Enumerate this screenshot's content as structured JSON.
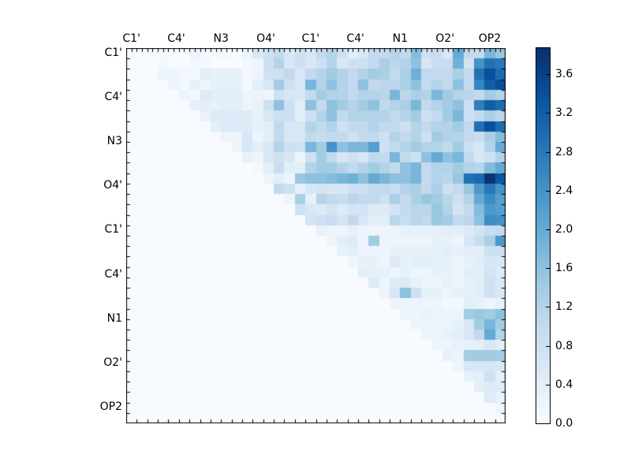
{
  "chart_data": {
    "type": "heatmap",
    "title": "",
    "x_labels": [
      "C1'",
      "C4'",
      "N3",
      "O4'",
      "C1'",
      "C4'",
      "N1",
      "O2'",
      "OP2"
    ],
    "y_labels": [
      "C1'",
      "C4'",
      "N3",
      "O4'",
      "C1'",
      "C4'",
      "N1",
      "O2'",
      "OP2"
    ],
    "n_cells": 36,
    "label_positions_cells": [
      0.5,
      4.75,
      9.0,
      13.25,
      17.5,
      21.75,
      26.0,
      30.25,
      34.5
    ],
    "layout": "upper-triangular matrix, diagonal and lower triangle at zero",
    "colormap": "Blues",
    "colormap_stops": [
      "#f7fbff",
      "#deebf7",
      "#c6dbef",
      "#9ecae1",
      "#6baed6",
      "#4292c6",
      "#2171b5",
      "#08519c",
      "#08306b"
    ],
    "vmin": 0.0,
    "vmax": 3.87,
    "colorbar_ticks": [
      "0.0",
      "0.4",
      "0.8",
      "1.2",
      "1.6",
      "2.0",
      "2.4",
      "2.8",
      "3.2",
      "3.6"
    ],
    "colorbar_tick_values": [
      0.0,
      0.4,
      0.8,
      1.2,
      1.6,
      2.0,
      2.4,
      2.8,
      3.2,
      3.6
    ],
    "colorbar_position": "right",
    "matrix": [
      [
        0,
        0,
        0.1,
        0.1,
        0,
        0,
        0.2,
        0.1,
        0.1,
        0.1,
        0,
        0.2,
        0.6,
        0.8,
        1.0,
        0.6,
        0.8,
        0.6,
        1.0,
        1.2,
        0.8,
        0.4,
        0.6,
        1.0,
        1.0,
        1.2,
        1.0,
        1.7,
        0.8,
        0.9,
        0.6,
        2.0,
        1.0,
        1.0,
        1.8,
        1.5
      ],
      [
        0,
        0,
        0,
        0.1,
        0,
        0,
        0.1,
        0.1,
        0,
        0,
        0,
        0.1,
        0.2,
        0.8,
        1.2,
        0.6,
        0.8,
        0.6,
        0.8,
        1.2,
        0.6,
        0.8,
        0.8,
        1.0,
        1.3,
        1.1,
        1.2,
        1.6,
        0.6,
        0.9,
        0.9,
        1.9,
        0.7,
        2.4,
        2.9,
        2.8
      ],
      [
        0,
        0,
        0,
        0.2,
        0.2,
        0.1,
        0.1,
        0.4,
        0.3,
        0.3,
        0.3,
        0.1,
        0.2,
        0.8,
        0.8,
        1.0,
        0.6,
        1.0,
        1.2,
        1.4,
        1.2,
        1.0,
        1.2,
        1.4,
        1.3,
        1.0,
        1.3,
        1.9,
        1.0,
        1.0,
        1.0,
        1.3,
        1.0,
        2.9,
        3.4,
        3.0
      ],
      [
        0,
        0,
        0,
        0,
        0.2,
        0.1,
        0.3,
        0.2,
        0.3,
        0.3,
        0.3,
        0.1,
        0.4,
        0.6,
        1.4,
        0.8,
        0.6,
        1.8,
        1.2,
        1.6,
        1.2,
        1.0,
        1.6,
        1.0,
        1.1,
        1.1,
        1.3,
        1.6,
        1.0,
        1.2,
        1.0,
        1.6,
        1.0,
        2.6,
        3.2,
        3.4
      ],
      [
        0,
        0,
        0,
        0,
        0,
        0.2,
        0.1,
        0.5,
        0.4,
        0.4,
        0.4,
        0.2,
        0.2,
        0.2,
        0.8,
        0.6,
        0.6,
        1.0,
        1.4,
        1.2,
        1.2,
        1.0,
        1.2,
        1.2,
        1.1,
        1.8,
        1.1,
        1.3,
        1.2,
        1.8,
        1.4,
        1.2,
        1.1,
        1.0,
        1.4,
        1.2
      ],
      [
        0,
        0,
        0,
        0,
        0,
        0,
        0.3,
        0.4,
        0.3,
        0.4,
        0.4,
        0.2,
        0.3,
        0.8,
        1.6,
        0.8,
        0.4,
        1.6,
        1.0,
        1.6,
        1.4,
        1.2,
        1.4,
        1.6,
        1.0,
        1.2,
        1.3,
        1.8,
        1.0,
        1.2,
        1.4,
        1.6,
        0.8,
        2.7,
        3.2,
        3.0
      ],
      [
        0,
        0,
        0,
        0,
        0,
        0,
        0,
        0.3,
        0.5,
        0.5,
        0.5,
        0.5,
        0.3,
        0.6,
        0.8,
        0.8,
        0.4,
        0.8,
        1.2,
        1.6,
        1.0,
        1.2,
        1.2,
        1.2,
        1.2,
        1.0,
        1.2,
        1.4,
        0.8,
        1.0,
        1.4,
        1.8,
        0.8,
        1.0,
        1.3,
        1.1
      ],
      [
        0,
        0,
        0,
        0,
        0,
        0,
        0,
        0,
        0.4,
        0.5,
        0.5,
        0.5,
        0.3,
        0.4,
        1.0,
        0.6,
        0.6,
        1.2,
        1.0,
        1.2,
        0.8,
        1.0,
        1.0,
        1.2,
        1.0,
        1.0,
        0.8,
        1.2,
        1.0,
        1.2,
        1.2,
        1.4,
        1.0,
        2.9,
        3.4,
        3.0
      ],
      [
        0,
        0,
        0,
        0,
        0,
        0,
        0,
        0,
        0,
        0.2,
        0.2,
        0.6,
        0.2,
        0.4,
        1.0,
        0.6,
        0.6,
        1.0,
        0.9,
        1.0,
        1.0,
        0.8,
        1.0,
        1.0,
        0.8,
        1.2,
        1.0,
        1.2,
        0.8,
        1.4,
        1.2,
        1.2,
        1.0,
        0.9,
        1.3,
        1.7
      ],
      [
        0,
        0,
        0,
        0,
        0,
        0,
        0,
        0,
        0,
        0,
        0.2,
        0.6,
        0.4,
        0.6,
        1.2,
        0.8,
        0.8,
        1.8,
        1.4,
        2.4,
        1.6,
        1.8,
        1.8,
        2.2,
        0.8,
        1.0,
        1.2,
        1.4,
        1.2,
        1.2,
        1.0,
        1.4,
        0.8,
        0.6,
        1.2,
        2.0
      ],
      [
        0,
        0,
        0,
        0,
        0,
        0,
        0,
        0,
        0,
        0,
        0,
        0.3,
        0.2,
        0.6,
        0.8,
        0.6,
        0.2,
        0.8,
        1.4,
        1.0,
        0.6,
        0.8,
        0.6,
        1.0,
        1.0,
        1.8,
        1.0,
        0.8,
        1.6,
        2.0,
        1.6,
        1.8,
        1.0,
        0.6,
        0.8,
        1.2
      ],
      [
        0,
        0,
        0,
        0,
        0,
        0,
        0,
        0,
        0,
        0,
        0,
        0,
        0.1,
        0.4,
        0.9,
        0.4,
        0.4,
        1.2,
        1.4,
        1.4,
        1.2,
        1.0,
        1.2,
        1.4,
        1.2,
        1.0,
        1.6,
        1.8,
        1.0,
        1.2,
        1.2,
        1.4,
        1.2,
        1.1,
        1.7,
        2.0
      ],
      [
        0,
        0,
        0,
        0,
        0,
        0,
        0,
        0,
        0,
        0,
        0,
        0,
        0,
        0.2,
        0.4,
        0.2,
        1.5,
        1.6,
        1.6,
        1.7,
        1.8,
        1.9,
        1.6,
        2.0,
        1.8,
        1.6,
        1.6,
        1.8,
        1.0,
        1.2,
        1.1,
        1.5,
        2.9,
        3.0,
        3.8,
        3.3
      ],
      [
        0,
        0,
        0,
        0,
        0,
        0,
        0,
        0,
        0,
        0,
        0,
        0,
        0,
        0,
        1.0,
        0.8,
        0.3,
        0.6,
        0.7,
        0.6,
        0.6,
        0.8,
        0.8,
        1.0,
        1.0,
        0.9,
        1.2,
        1.3,
        1.0,
        1.3,
        0.8,
        1.0,
        1.5,
        2.3,
        2.8,
        2.4
      ],
      [
        0,
        0,
        0,
        0,
        0,
        0,
        0,
        0,
        0,
        0,
        0,
        0,
        0,
        0,
        0,
        0.2,
        1.3,
        0.3,
        1.2,
        1.0,
        0.9,
        1.1,
        1.0,
        1.0,
        0.8,
        1.3,
        1.0,
        1.3,
        1.5,
        1.4,
        1.1,
        0.8,
        1.2,
        2.0,
        2.5,
        2.2
      ],
      [
        0,
        0,
        0,
        0,
        0,
        0,
        0,
        0,
        0,
        0,
        0,
        0,
        0,
        0,
        0,
        0,
        0.8,
        0.6,
        0.5,
        0.7,
        0.5,
        0.7,
        0.7,
        0.5,
        0.5,
        0.7,
        1.0,
        1.1,
        1.1,
        1.5,
        1.2,
        0.7,
        1.0,
        1.7,
        2.3,
        2.2
      ],
      [
        0,
        0,
        0,
        0,
        0,
        0,
        0,
        0,
        0,
        0,
        0,
        0,
        0,
        0,
        0,
        0,
        0,
        0.7,
        0.8,
        0.9,
        0.7,
        1.0,
        0.6,
        0.4,
        0.4,
        1.1,
        0.9,
        1.1,
        1.0,
        1.5,
        1.4,
        1.0,
        1.1,
        1.6,
        2.5,
        2.4
      ],
      [
        0,
        0,
        0,
        0,
        0,
        0,
        0,
        0,
        0,
        0,
        0,
        0,
        0,
        0,
        0,
        0,
        0,
        0,
        0.3,
        0.2,
        0.2,
        0.3,
        0.2,
        0.2,
        0.2,
        0.2,
        0.3,
        0.3,
        0.3,
        0.3,
        0.4,
        0.4,
        0.5,
        0.7,
        0.9,
        1.0
      ],
      [
        0,
        0,
        0,
        0,
        0,
        0,
        0,
        0,
        0,
        0,
        0,
        0,
        0,
        0,
        0,
        0,
        0,
        0,
        0,
        0.2,
        0.4,
        0.5,
        0.2,
        1.4,
        0.2,
        0.2,
        0.2,
        0.2,
        0.2,
        0.3,
        0.3,
        0.2,
        0.6,
        0.9,
        1.3,
        2.3
      ],
      [
        0,
        0,
        0,
        0,
        0,
        0,
        0,
        0,
        0,
        0,
        0,
        0,
        0,
        0,
        0,
        0,
        0,
        0,
        0,
        0,
        0.3,
        0.4,
        0.2,
        0.2,
        0.2,
        0.3,
        0.3,
        0.3,
        0.3,
        0.3,
        0.4,
        0.3,
        0.4,
        0.4,
        0.8,
        0.8
      ],
      [
        0,
        0,
        0,
        0,
        0,
        0,
        0,
        0,
        0,
        0,
        0,
        0,
        0,
        0,
        0,
        0,
        0,
        0,
        0,
        0,
        0,
        0.2,
        0.3,
        0.3,
        0.2,
        0.5,
        0.3,
        0.4,
        0.4,
        0.3,
        0.3,
        0.2,
        0.3,
        0.4,
        0.6,
        0.6
      ],
      [
        0,
        0,
        0,
        0,
        0,
        0,
        0,
        0,
        0,
        0,
        0,
        0,
        0,
        0,
        0,
        0,
        0,
        0,
        0,
        0,
        0,
        0,
        0.4,
        0.3,
        0.3,
        0.2,
        0.3,
        0.2,
        0.2,
        0.3,
        0.3,
        0.2,
        0.4,
        0.4,
        0.7,
        0.5
      ],
      [
        0,
        0,
        0,
        0,
        0,
        0,
        0,
        0,
        0,
        0,
        0,
        0,
        0,
        0,
        0,
        0,
        0,
        0,
        0,
        0,
        0,
        0,
        0,
        0.5,
        0.2,
        0.5,
        0.5,
        0.3,
        0.2,
        0.2,
        0.3,
        0.2,
        0.3,
        0.4,
        0.8,
        0.6
      ],
      [
        0,
        0,
        0,
        0,
        0,
        0,
        0,
        0,
        0,
        0,
        0,
        0,
        0,
        0,
        0,
        0,
        0,
        0,
        0,
        0,
        0,
        0,
        0,
        0,
        0.2,
        0.6,
        1.6,
        0.8,
        0.3,
        0.3,
        0.2,
        0.3,
        0.3,
        0.4,
        0.8,
        0.6
      ],
      [
        0,
        0,
        0,
        0,
        0,
        0,
        0,
        0,
        0,
        0,
        0,
        0,
        0,
        0,
        0,
        0,
        0,
        0,
        0,
        0,
        0,
        0,
        0,
        0,
        0,
        0.2,
        0.2,
        0.2,
        0.2,
        0.2,
        0.1,
        0.1,
        0.4,
        0.3,
        0.2,
        0.3
      ],
      [
        0,
        0,
        0,
        0,
        0,
        0,
        0,
        0,
        0,
        0,
        0,
        0,
        0,
        0,
        0,
        0,
        0,
        0,
        0,
        0,
        0,
        0,
        0,
        0,
        0,
        0,
        0.2,
        0.2,
        0.3,
        0.2,
        0.2,
        0.2,
        1.4,
        1.5,
        1.4,
        1.6
      ],
      [
        0,
        0,
        0,
        0,
        0,
        0,
        0,
        0,
        0,
        0,
        0,
        0,
        0,
        0,
        0,
        0,
        0,
        0,
        0,
        0,
        0,
        0,
        0,
        0,
        0,
        0,
        0,
        0.2,
        0.2,
        0.2,
        0.2,
        0.3,
        0.6,
        1.4,
        1.8,
        1.4
      ],
      [
        0,
        0,
        0,
        0,
        0,
        0,
        0,
        0,
        0,
        0,
        0,
        0,
        0,
        0,
        0,
        0,
        0,
        0,
        0,
        0,
        0,
        0,
        0,
        0,
        0,
        0,
        0,
        0,
        0.2,
        0.2,
        0.3,
        0.4,
        0.6,
        1.0,
        2.0,
        1.2
      ],
      [
        0,
        0,
        0,
        0,
        0,
        0,
        0,
        0,
        0,
        0,
        0,
        0,
        0,
        0,
        0,
        0,
        0,
        0,
        0,
        0,
        0,
        0,
        0,
        0,
        0,
        0,
        0,
        0,
        0,
        0.2,
        0.2,
        0.3,
        0.3,
        0.4,
        0.6,
        0.4
      ],
      [
        0,
        0,
        0,
        0,
        0,
        0,
        0,
        0,
        0,
        0,
        0,
        0,
        0,
        0,
        0,
        0,
        0,
        0,
        0,
        0,
        0,
        0,
        0,
        0,
        0,
        0,
        0,
        0,
        0,
        0,
        0.3,
        0.2,
        1.4,
        1.4,
        1.4,
        1.4
      ],
      [
        0,
        0,
        0,
        0,
        0,
        0,
        0,
        0,
        0,
        0,
        0,
        0,
        0,
        0,
        0,
        0,
        0,
        0,
        0,
        0,
        0,
        0,
        0,
        0,
        0,
        0,
        0,
        0,
        0,
        0,
        0,
        0.2,
        0.6,
        0.6,
        0.6,
        0.6
      ],
      [
        0,
        0,
        0,
        0,
        0,
        0,
        0,
        0,
        0,
        0,
        0,
        0,
        0,
        0,
        0,
        0,
        0,
        0,
        0,
        0,
        0,
        0,
        0,
        0,
        0,
        0,
        0,
        0,
        0,
        0,
        0,
        0,
        0.3,
        0.4,
        0.8,
        0.4
      ],
      [
        0,
        0,
        0,
        0,
        0,
        0,
        0,
        0,
        0,
        0,
        0,
        0,
        0,
        0,
        0,
        0,
        0,
        0,
        0,
        0,
        0,
        0,
        0,
        0,
        0,
        0,
        0,
        0,
        0,
        0,
        0,
        0,
        0,
        0.4,
        0.5,
        0.5
      ],
      [
        0,
        0,
        0,
        0,
        0,
        0,
        0,
        0,
        0,
        0,
        0,
        0,
        0,
        0,
        0,
        0,
        0,
        0,
        0,
        0,
        0,
        0,
        0,
        0,
        0,
        0,
        0,
        0,
        0,
        0,
        0,
        0,
        0,
        0,
        0.5,
        0.3
      ],
      [
        0,
        0,
        0,
        0,
        0,
        0,
        0,
        0,
        0,
        0,
        0,
        0,
        0,
        0,
        0,
        0,
        0,
        0,
        0,
        0,
        0,
        0,
        0,
        0,
        0,
        0,
        0,
        0,
        0,
        0,
        0,
        0,
        0,
        0,
        0,
        0.2
      ],
      [
        0,
        0,
        0,
        0,
        0,
        0,
        0,
        0,
        0,
        0,
        0,
        0,
        0,
        0,
        0,
        0,
        0,
        0,
        0,
        0,
        0,
        0,
        0,
        0,
        0,
        0,
        0,
        0,
        0,
        0,
        0,
        0,
        0,
        0,
        0,
        0
      ]
    ]
  },
  "colors": {
    "figure_background": "#ffffff",
    "frame": "#000000",
    "text": "#000000"
  }
}
